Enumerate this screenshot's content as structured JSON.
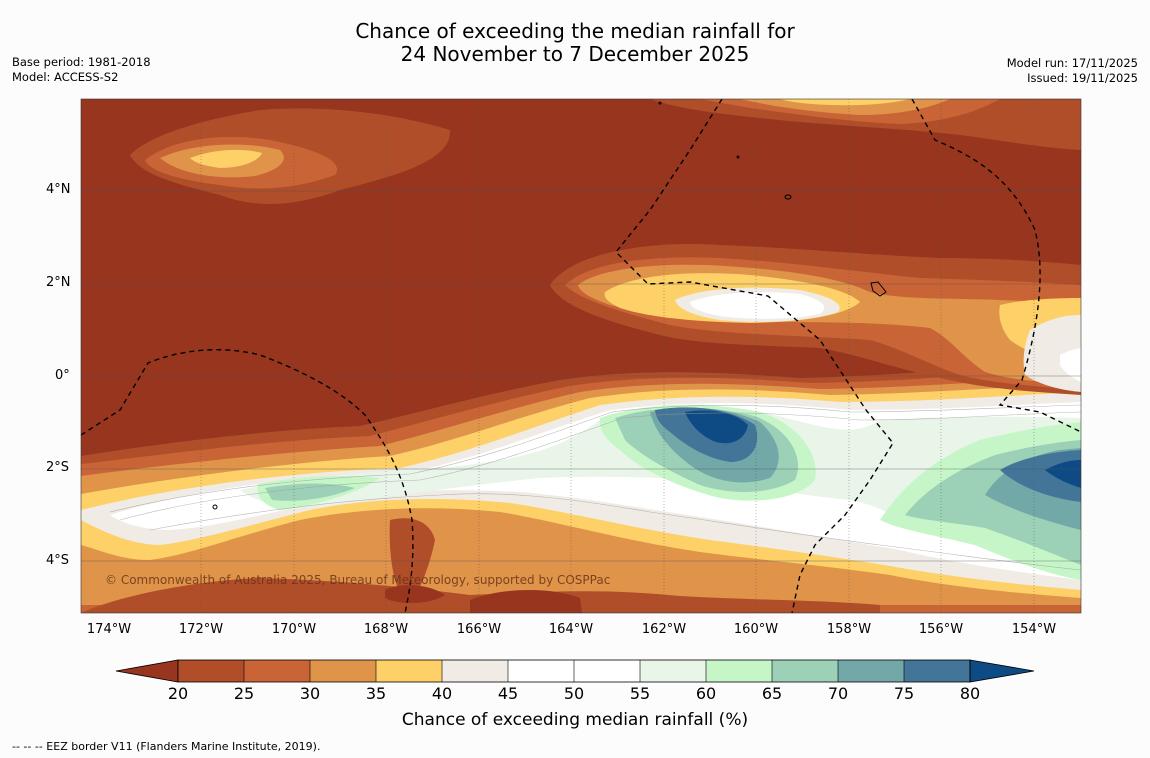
{
  "title": {
    "line1": "Chance of exceeding the median rainfall for",
    "line2": "24 November to 7 December 2025"
  },
  "meta": {
    "base_period": "Base period: 1981-2018",
    "model": "Model: ACCESS-S2",
    "model_run": "Model run: 17/11/2025",
    "issued": "Issued: 19/11/2025"
  },
  "map": {
    "lat_labels": [
      "4°N",
      "2°N",
      "0°",
      "2°S",
      "4°S"
    ],
    "lon_labels": [
      "174°W",
      "172°W",
      "170°W",
      "168°W",
      "166°W",
      "164°W",
      "162°W",
      "160°W",
      "158°W",
      "156°W",
      "154°W"
    ],
    "copyright": "© Commonwealth of Australia 2025, Bureau of Meteorology, supported by COSPPac"
  },
  "colorbar": {
    "title": "Chance of exceeding median rainfall (%)",
    "labels": [
      "20",
      "25",
      "30",
      "35",
      "40",
      "45",
      "50",
      "55",
      "60",
      "65",
      "70",
      "75",
      "80"
    ],
    "colors": [
      "#97351f",
      "#b04e29",
      "#c96436",
      "#df944a",
      "#fdd068",
      "#f0ebe4",
      "#ffffff",
      "#ffffff",
      "#e8f5e8",
      "#c6f6c8",
      "#9cd1b8",
      "#73a8a8",
      "#427597",
      "#0e4a84"
    ]
  },
  "footer": "--  --  -- EEZ border V11 (Flanders Marine Institute, 2019)."
}
